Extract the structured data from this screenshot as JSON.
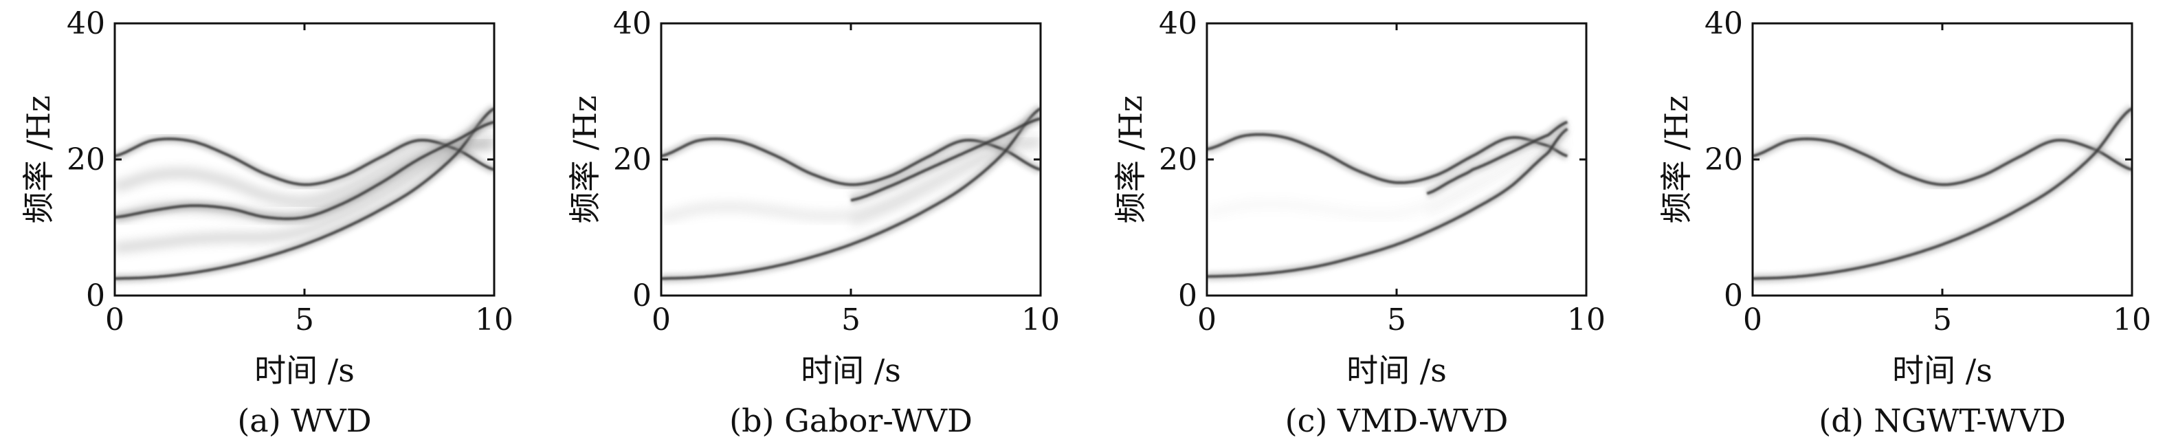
{
  "figure": {
    "background": "#ffffff",
    "ink": "#111111"
  },
  "chart_data": [
    {
      "type": "heatmap",
      "caption": "(a) WVD",
      "xlabel": "时间 /s",
      "ylabel": "频率 /Hz",
      "xlim": [
        0,
        10
      ],
      "ylim": [
        0,
        40
      ],
      "xticks": [
        "0",
        "5",
        "10"
      ],
      "yticks": [
        "0",
        "20",
        "40"
      ],
      "colormap": "gray_r",
      "components": [
        {
          "name": "",
          "t": [
            0,
            1,
            2,
            3,
            4,
            5,
            6,
            7,
            8,
            9,
            10
          ],
          "f": [
            20.5,
            22.8,
            22.7,
            20.6,
            17.8,
            16.3,
            17.5,
            20.3,
            22.8,
            21.5,
            18.5
          ],
          "t_range": [
            0,
            10
          ]
        },
        {
          "name": "",
          "t": [
            0,
            1,
            2,
            3,
            4,
            5,
            6,
            7,
            8,
            9,
            10
          ],
          "f": [
            2.5,
            2.7,
            3.3,
            4.3,
            5.7,
            7.5,
            9.8,
            12.6,
            16.0,
            20.8,
            27.5
          ],
          "t_range": [
            0,
            10
          ]
        },
        {
          "name": "",
          "t": [
            0,
            1,
            2,
            3,
            4,
            5,
            6,
            7,
            8,
            9,
            10
          ],
          "f": [
            11.5,
            12.5,
            13.2,
            12.8,
            11.5,
            11.5,
            13.5,
            16.5,
            20.0,
            22.8,
            25.5
          ],
          "t_range": [
            0,
            10
          ]
        }
      ],
      "cross_terms": "strong"
    },
    {
      "type": "heatmap",
      "caption": "(b) Gabor-WVD",
      "xlabel": "时间 /s",
      "ylabel": "频率 /Hz",
      "xlim": [
        0,
        10
      ],
      "ylim": [
        0,
        40
      ],
      "xticks": [
        "0",
        "5",
        "10"
      ],
      "yticks": [
        "0",
        "20",
        "40"
      ],
      "colormap": "gray_r",
      "components": [
        {
          "name": "",
          "t": [
            0,
            1,
            2,
            3,
            4,
            5,
            6,
            7,
            8,
            9,
            10
          ],
          "f": [
            20.5,
            22.8,
            22.7,
            20.6,
            17.8,
            16.3,
            17.5,
            20.3,
            22.8,
            21.5,
            18.5
          ],
          "t_range": [
            0,
            10
          ]
        },
        {
          "name": "",
          "t": [
            0,
            1,
            2,
            3,
            4,
            5,
            6,
            7,
            8,
            9,
            10
          ],
          "f": [
            2.5,
            2.7,
            3.3,
            4.3,
            5.7,
            7.5,
            9.8,
            12.6,
            16.0,
            20.8,
            27.5
          ],
          "t_range": [
            0,
            10
          ]
        },
        {
          "name": "",
          "t": [
            5,
            6,
            7,
            8,
            9,
            10
          ],
          "f": [
            14.0,
            16.0,
            18.5,
            21.0,
            23.5,
            26.0
          ],
          "t_range": [
            5,
            10
          ]
        }
      ],
      "cross_terms": "medium"
    },
    {
      "type": "heatmap",
      "caption": "(c) VMD-WVD",
      "xlabel": "时间 /s",
      "ylabel": "频率 /Hz",
      "xlim": [
        0,
        10
      ],
      "ylim": [
        0,
        40
      ],
      "xticks": [
        "0",
        "5",
        "10"
      ],
      "yticks": [
        "0",
        "20",
        "40"
      ],
      "colormap": "gray_r",
      "components": [
        {
          "name": "",
          "t": [
            0,
            1,
            2,
            3,
            4,
            5,
            6,
            7,
            8,
            9,
            9.5
          ],
          "f": [
            21.5,
            23.5,
            23.3,
            21.2,
            18.3,
            16.6,
            17.6,
            20.5,
            23.2,
            22.0,
            20.5
          ],
          "t_range": [
            0,
            9.5
          ]
        },
        {
          "name": "",
          "t": [
            0,
            1,
            2,
            3,
            4,
            5,
            6,
            7,
            8,
            9,
            9.5
          ],
          "f": [
            2.8,
            3.0,
            3.5,
            4.4,
            5.8,
            7.5,
            9.8,
            12.6,
            16.0,
            21.0,
            24.5
          ],
          "t_range": [
            0,
            9.5
          ]
        },
        {
          "name": "",
          "t": [
            5.8,
            6.5,
            7,
            8,
            9,
            9.5
          ],
          "f": [
            15.0,
            17.0,
            18.5,
            21.0,
            23.6,
            25.5
          ],
          "t_range": [
            5.8,
            9.5
          ]
        }
      ],
      "cross_terms": "low"
    },
    {
      "type": "heatmap",
      "caption": "(d) NGWT-WVD",
      "xlabel": "时间 /s",
      "ylabel": "频率 /Hz",
      "xlim": [
        0,
        10
      ],
      "ylim": [
        0,
        40
      ],
      "xticks": [
        "0",
        "5",
        "10"
      ],
      "yticks": [
        "0",
        "20",
        "40"
      ],
      "colormap": "gray_r",
      "components": [
        {
          "name": "",
          "t": [
            0,
            1,
            2,
            3,
            4,
            5,
            6,
            7,
            8,
            9,
            10
          ],
          "f": [
            20.5,
            22.8,
            22.7,
            20.6,
            17.8,
            16.3,
            17.5,
            20.3,
            22.8,
            21.5,
            18.5
          ],
          "t_range": [
            0,
            10
          ]
        },
        {
          "name": "",
          "t": [
            0,
            1,
            2,
            3,
            4,
            5,
            6,
            7,
            8,
            9,
            10
          ],
          "f": [
            2.5,
            2.7,
            3.3,
            4.3,
            5.7,
            7.5,
            9.8,
            12.6,
            16.0,
            20.8,
            27.5
          ],
          "t_range": [
            0,
            10
          ]
        }
      ],
      "cross_terms": "none"
    }
  ]
}
